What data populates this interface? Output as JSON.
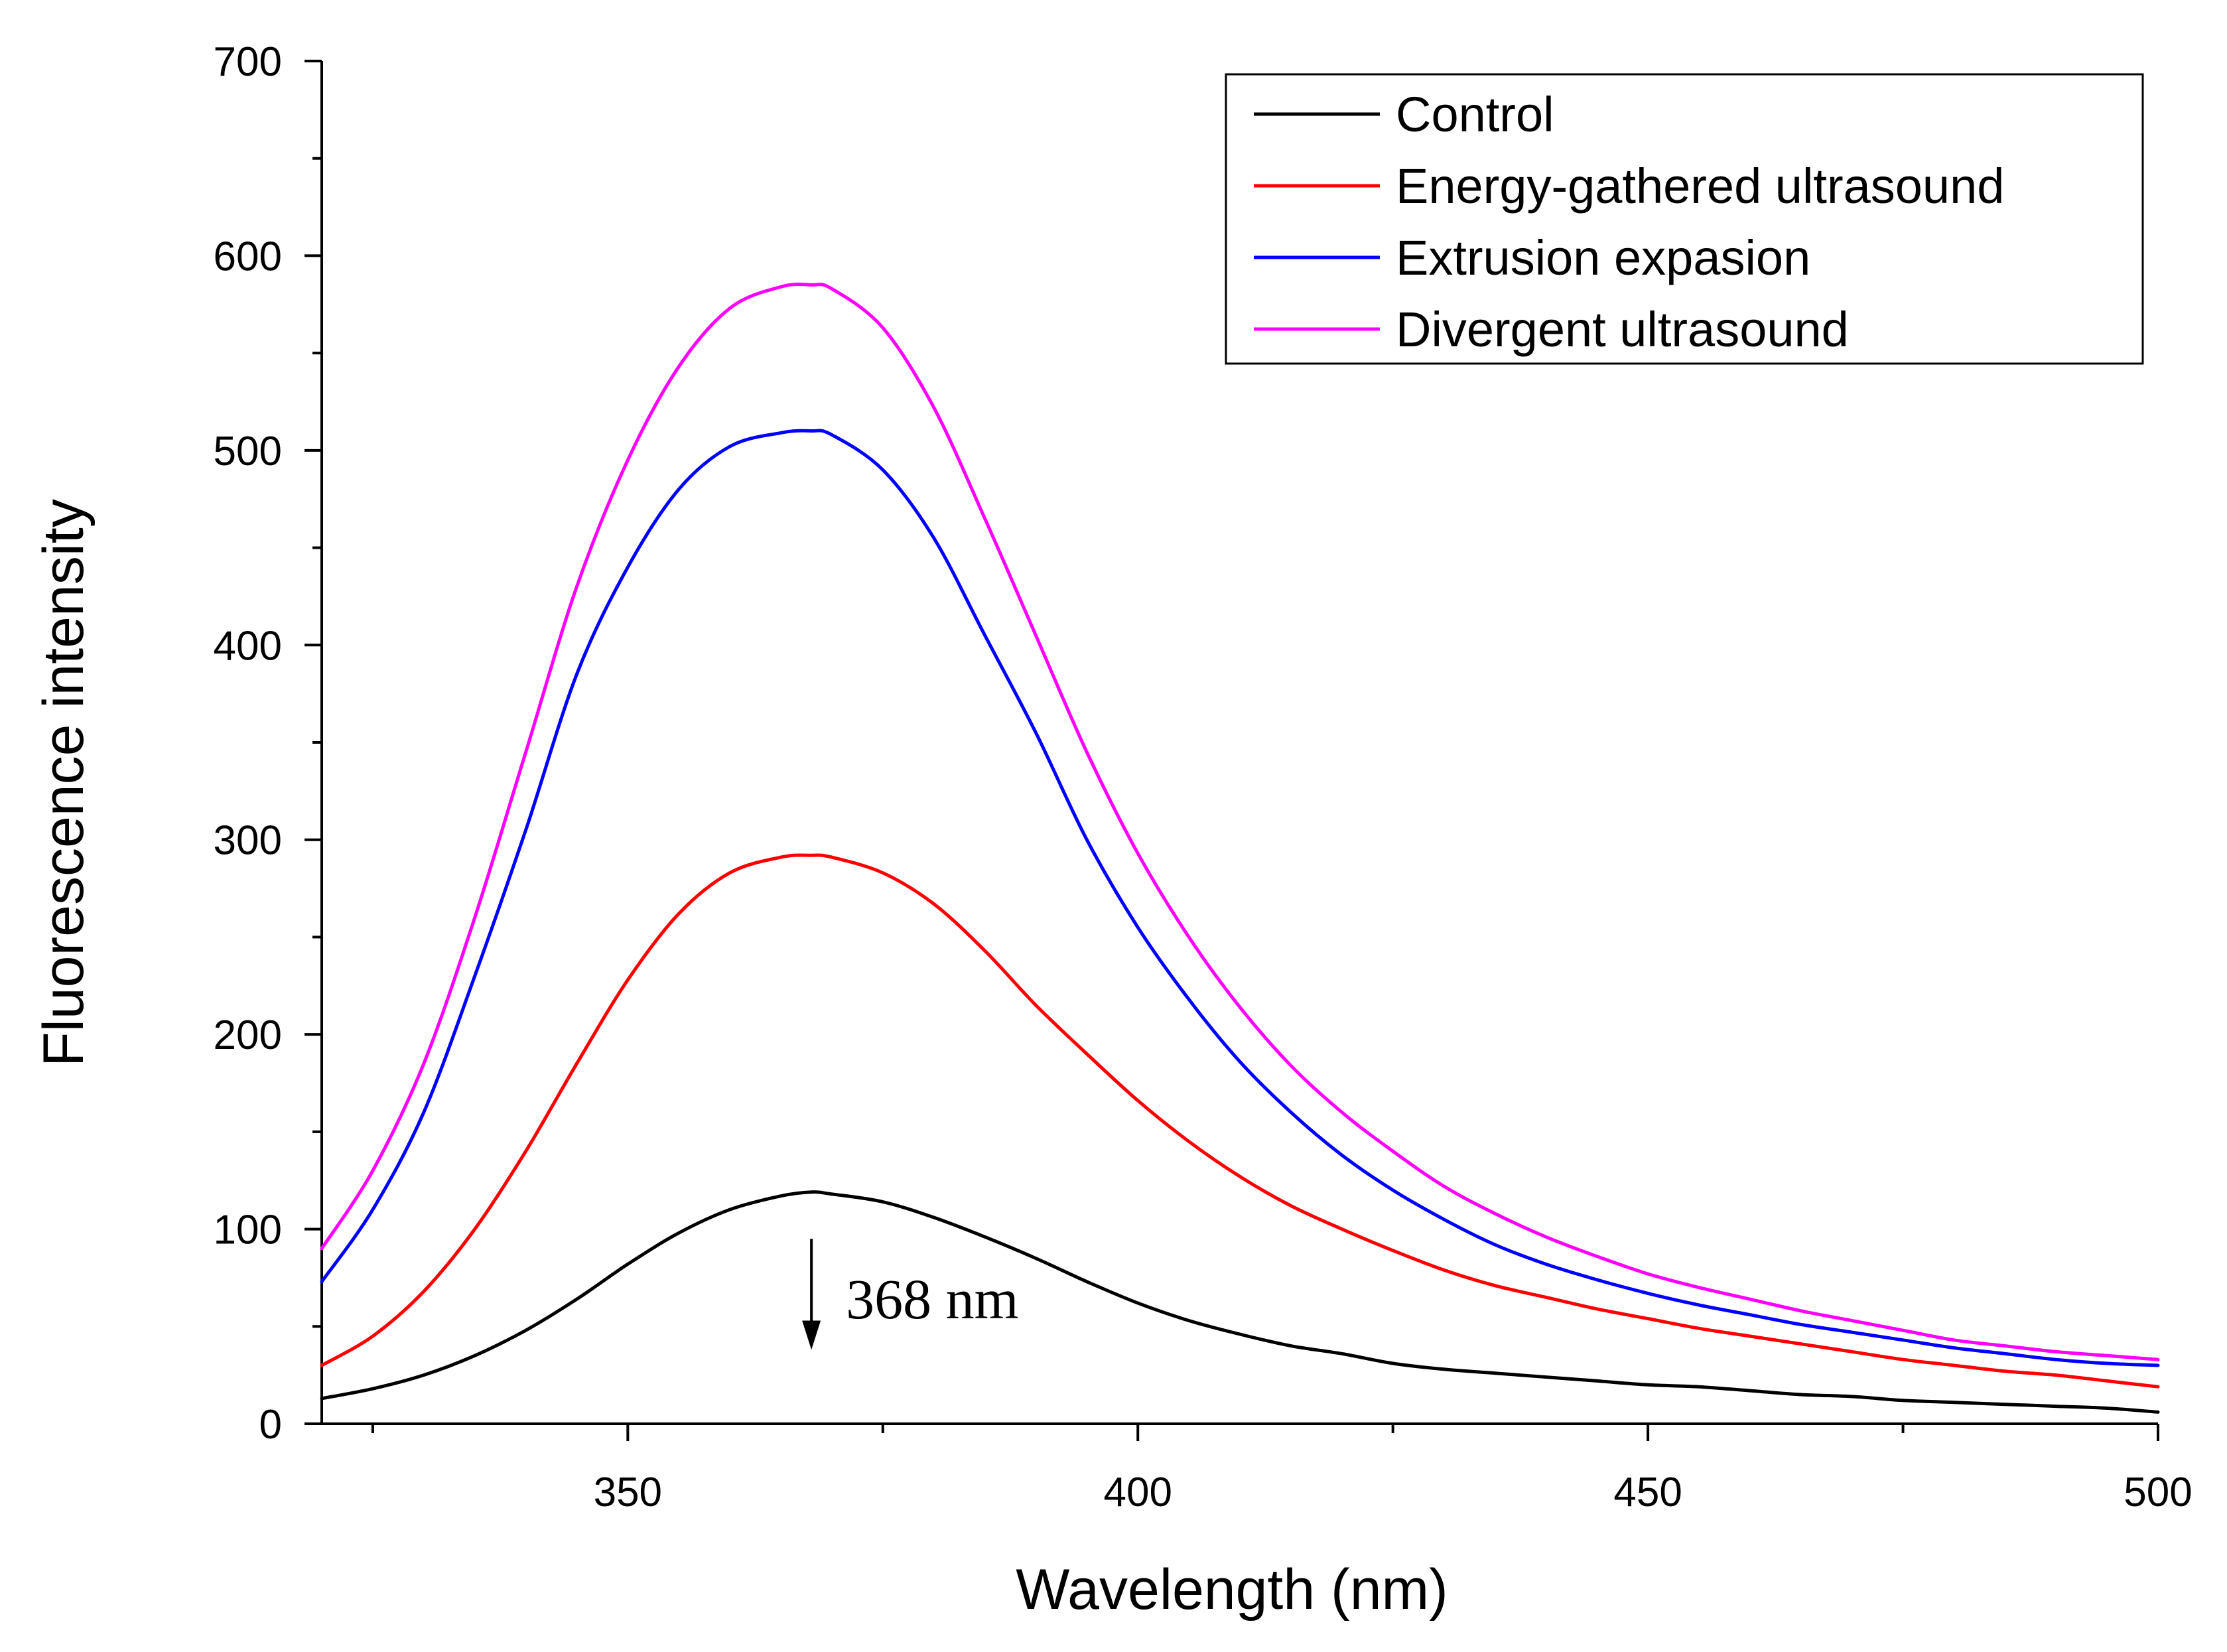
{
  "chart_data": {
    "type": "line",
    "title": "",
    "xlabel": "Wavelength (nm)",
    "ylabel": "Fluorescence intensity",
    "xlim": [
      320,
      500
    ],
    "ylim": [
      0,
      700
    ],
    "x_major_ticks": [
      350,
      400,
      450,
      500
    ],
    "x_minor_ticks": [
      325,
      375,
      425,
      475
    ],
    "y_major_ticks": [
      0,
      100,
      200,
      300,
      400,
      500,
      600,
      700
    ],
    "y_minor_ticks": [
      50,
      150,
      250,
      350,
      450,
      550,
      650
    ],
    "grid": false,
    "legend_position": "top-right",
    "x": [
      320,
      325,
      330,
      335,
      340,
      345,
      350,
      355,
      360,
      365,
      368,
      370,
      375,
      380,
      385,
      390,
      395,
      400,
      405,
      410,
      415,
      420,
      425,
      430,
      435,
      440,
      445,
      450,
      455,
      460,
      465,
      470,
      475,
      480,
      485,
      490,
      495,
      500
    ],
    "series": [
      {
        "name": "Control",
        "color": "#000000",
        "values": [
          13,
          18,
          25,
          35,
          48,
          64,
          82,
          98,
          110,
          117,
          119,
          118,
          114,
          106,
          96,
          85,
          73,
          62,
          53,
          46,
          40,
          36,
          31,
          28,
          26,
          24,
          22,
          20,
          19,
          17,
          15,
          14,
          12,
          11,
          10,
          9,
          8,
          6
        ]
      },
      {
        "name": "Energy-gathered ultrasound",
        "color": "#ff0000",
        "values": [
          30,
          45,
          68,
          100,
          140,
          185,
          228,
          262,
          283,
          291,
          292,
          291,
          283,
          267,
          243,
          215,
          190,
          166,
          145,
          127,
          112,
          100,
          89,
          79,
          71,
          65,
          59,
          54,
          49,
          45,
          41,
          37,
          33,
          30,
          27,
          25,
          22,
          19
        ]
      },
      {
        "name": "Extrusion expasion",
        "color": "#0000ff",
        "values": [
          73,
          110,
          160,
          230,
          305,
          385,
          440,
          480,
          502,
          509,
          510,
          508,
          490,
          455,
          405,
          355,
          300,
          255,
          218,
          186,
          160,
          138,
          120,
          105,
          92,
          82,
          74,
          67,
          61,
          56,
          51,
          47,
          43,
          39,
          36,
          33,
          31,
          30
        ]
      },
      {
        "name": "Divergent ultrasound",
        "color": "#ff00ff",
        "values": [
          90,
          130,
          185,
          260,
          345,
          430,
          495,
          543,
          573,
          584,
          585,
          583,
          563,
          522,
          465,
          405,
          345,
          293,
          250,
          214,
          184,
          160,
          140,
          122,
          108,
          96,
          86,
          77,
          70,
          64,
          58,
          53,
          48,
          43,
          40,
          37,
          35,
          33
        ]
      }
    ],
    "annotations": [
      {
        "text": "368 nm",
        "x": 368,
        "arrow_from_y": 95,
        "arrow_to_y": 38
      }
    ]
  }
}
